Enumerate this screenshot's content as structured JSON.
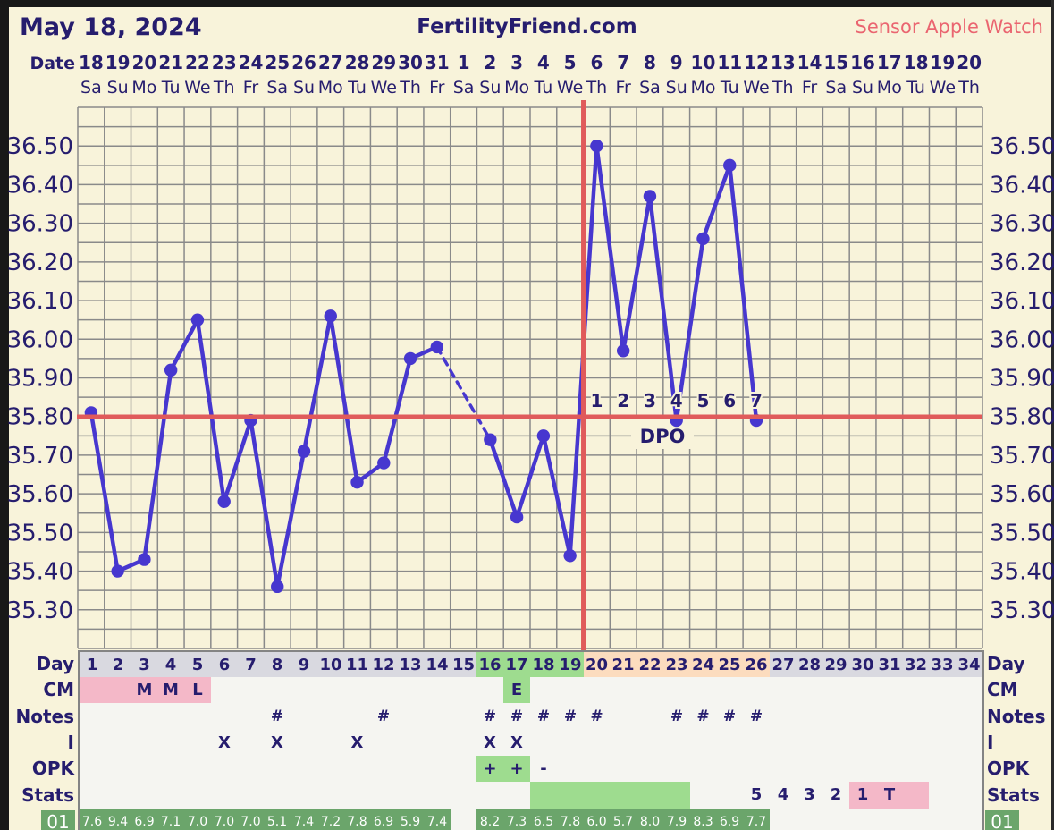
{
  "header": {
    "date_label": "May 18, 2024",
    "brand": "FertilityFriend.com",
    "sensor": "Sensor Apple Watch"
  },
  "axis": {
    "date_row_label": "Date",
    "dates": [
      "18",
      "19",
      "20",
      "21",
      "22",
      "23",
      "24",
      "25",
      "26",
      "27",
      "28",
      "29",
      "30",
      "31",
      "1",
      "2",
      "3",
      "4",
      "5",
      "6",
      "7",
      "8",
      "9",
      "10",
      "11",
      "12",
      "13",
      "14",
      "15",
      "16",
      "17",
      "18",
      "19",
      "20"
    ],
    "weekdays": [
      "Sa",
      "Su",
      "Mo",
      "Tu",
      "We",
      "Th",
      "Fr",
      "Sa",
      "Su",
      "Mo",
      "Tu",
      "We",
      "Th",
      "Fr",
      "Sa",
      "Su",
      "Mo",
      "Tu",
      "We",
      "Th",
      "Fr",
      "Sa",
      "Su",
      "Mo",
      "Tu",
      "We",
      "Th",
      "Fr",
      "Sa",
      "Su",
      "Mo",
      "Tu",
      "We",
      "Th"
    ],
    "y_labels": [
      "36.50",
      "36.40",
      "36.30",
      "36.20",
      "36.10",
      "36.00",
      "35.90",
      "35.80",
      "35.70",
      "35.60",
      "35.50",
      "35.40",
      "35.30"
    ]
  },
  "chart_data": {
    "type": "line",
    "title": "Basal body temperature cycle chart",
    "x_day_count": 34,
    "temps": [
      35.81,
      35.4,
      35.43,
      35.92,
      36.05,
      35.58,
      35.79,
      35.36,
      35.71,
      36.06,
      35.63,
      35.68,
      35.95,
      35.98,
      null,
      35.74,
      35.54,
      35.75,
      35.44,
      36.5,
      35.97,
      36.37,
      35.79,
      36.26,
      36.45,
      35.79,
      null,
      null,
      null,
      null,
      null,
      null,
      null,
      null
    ],
    "ylim": [
      35.2,
      36.6
    ],
    "y_minor_step": 0.05,
    "coverline": 35.8,
    "ovulation_after_day": 19,
    "dpo_start_day": 20,
    "dpo_labels": [
      "1",
      "2",
      "3",
      "4",
      "5",
      "6",
      "7"
    ],
    "dpo_caption": "DPO",
    "missing_day_gap": [
      14,
      16
    ],
    "grid": true
  },
  "table": {
    "left_labels": [
      "Day",
      "CM",
      "Notes",
      "I",
      "OPK",
      "Stats"
    ],
    "right_labels": [
      "Day",
      "CM",
      "Notes",
      "I",
      "OPK",
      "Stats"
    ],
    "sleep_row_label": "01",
    "rows": [
      {
        "name": "Day",
        "cells": [
          "1",
          "2",
          "3",
          "4",
          "5",
          "6",
          "7",
          "8",
          "9",
          "10",
          "11",
          "12",
          "13",
          "14",
          "15",
          "16",
          "17",
          "18",
          "19",
          "20",
          "21",
          "22",
          "23",
          "24",
          "25",
          "26",
          "27",
          "28",
          "29",
          "30",
          "31",
          "32",
          "33",
          "34"
        ],
        "bg": [
          "y",
          "y",
          "y",
          "y",
          "y",
          "y",
          "y",
          "y",
          "y",
          "y",
          "y",
          "y",
          "y",
          "y",
          "y",
          "g",
          "g",
          "g",
          "g",
          "p",
          "p",
          "p",
          "p",
          "p",
          "p",
          "p",
          "y",
          "y",
          "y",
          "y",
          "y",
          "y",
          "y",
          "y"
        ]
      },
      {
        "name": "CM",
        "cells": [
          "",
          "",
          "M",
          "M",
          "L",
          "",
          "",
          "",
          "",
          "",
          "",
          "",
          "",
          "",
          "",
          "",
          "E",
          "",
          "",
          "",
          "",
          "",
          "",
          "",
          "",
          "",
          "",
          "",
          "",
          "",
          "",
          "",
          "",
          ""
        ],
        "bg": [
          "k",
          "k",
          "k",
          "k",
          "k",
          "",
          "",
          "",
          "",
          "",
          "",
          "",
          "",
          "",
          "",
          "",
          "g",
          "",
          "",
          "",
          "",
          "",
          "",
          "",
          "",
          "",
          "",
          "",
          "",
          "",
          "",
          "",
          "",
          ""
        ]
      },
      {
        "name": "Notes",
        "cells": [
          "",
          "",
          "",
          "",
          "",
          "",
          "",
          "#",
          "",
          "",
          "",
          "#",
          "",
          "",
          "",
          "#",
          "#",
          "#",
          "#",
          "#",
          "",
          "",
          "#",
          "#",
          "#",
          "#",
          "",
          "",
          "",
          "",
          "",
          "",
          "",
          ""
        ],
        "bg": [
          "",
          "",
          "",
          "",
          "",
          "",
          "",
          "",
          "",
          "",
          "",
          "",
          "",
          "",
          "",
          "",
          "",
          "",
          "",
          "",
          "",
          "",
          "",
          "",
          "",
          "",
          "",
          "",
          "",
          "",
          "",
          "",
          "",
          ""
        ]
      },
      {
        "name": "I",
        "cells": [
          "",
          "",
          "",
          "",
          "",
          "X",
          "",
          "X",
          "",
          "",
          "X",
          "",
          "",
          "",
          "",
          "X",
          "X",
          "",
          "",
          "",
          "",
          "",
          "",
          "",
          "",
          "",
          "",
          "",
          "",
          "",
          "",
          "",
          "",
          ""
        ],
        "bg": [
          "",
          "",
          "",
          "",
          "",
          "",
          "",
          "",
          "",
          "",
          "",
          "",
          "",
          "",
          "",
          "",
          "",
          "",
          "",
          "",
          "",
          "",
          "",
          "",
          "",
          "",
          "",
          "",
          "",
          "",
          "",
          "",
          "",
          ""
        ]
      },
      {
        "name": "OPK",
        "cells": [
          "",
          "",
          "",
          "",
          "",
          "",
          "",
          "",
          "",
          "",
          "",
          "",
          "",
          "",
          "",
          "+",
          "+",
          "-",
          "",
          "",
          "",
          "",
          "",
          "",
          "",
          "",
          "",
          "",
          "",
          "",
          "",
          "",
          "",
          ""
        ],
        "bg": [
          "",
          "",
          "",
          "",
          "",
          "",
          "",
          "",
          "",
          "",
          "",
          "",
          "",
          "",
          "",
          "g",
          "g",
          "",
          "",
          "",
          "",
          "",
          "",
          "",
          "",
          "",
          "",
          "",
          "",
          "",
          "",
          "",
          "",
          ""
        ]
      },
      {
        "name": "Stats",
        "cells": [
          "",
          "",
          "",
          "",
          "",
          "",
          "",
          "",
          "",
          "",
          "",
          "",
          "",
          "",
          "",
          "",
          "",
          "",
          "",
          "",
          "",
          "",
          "",
          "",
          "",
          "5",
          "4",
          "3",
          "2",
          "1",
          "T",
          "",
          "",
          ""
        ],
        "bg": [
          "",
          "",
          "",
          "",
          "",
          "",
          "",
          "",
          "",
          "",
          "",
          "",
          "",
          "",
          "",
          "",
          "",
          "g",
          "g",
          "g",
          "g",
          "g",
          "g",
          "",
          "",
          "",
          "",
          "",
          "",
          "k",
          "k",
          "k",
          "",
          ""
        ]
      },
      {
        "name": "01",
        "cells": [
          "7.6",
          "9.4",
          "6.9",
          "7.1",
          "7.0",
          "7.0",
          "7.0",
          "5.1",
          "7.4",
          "7.2",
          "7.8",
          "6.9",
          "5.9",
          "7.4",
          "",
          "8.2",
          "7.3",
          "6.5",
          "7.8",
          "6.0",
          "5.7",
          "8.0",
          "7.9",
          "8.3",
          "6.9",
          "7.7",
          "",
          "",
          "",
          "",
          "",
          "",
          "",
          ""
        ],
        "bg": [
          "d",
          "d",
          "d",
          "d",
          "d",
          "d",
          "d",
          "d",
          "d",
          "d",
          "d",
          "d",
          "d",
          "d",
          "",
          "d",
          "d",
          "d",
          "d",
          "d",
          "d",
          "d",
          "d",
          "d",
          "d",
          "d",
          "",
          "",
          "",
          "",
          "",
          "",
          "",
          ""
        ]
      }
    ]
  },
  "colors": {
    "line": "#4737cf",
    "red": "#e05b5b",
    "grid": "#8a8a8a",
    "navy": "#261d6e",
    "salmon": "#ea6570",
    "cream": "#f8f3da",
    "cell_plain": "#f5f5f1",
    "cell_grey": "#d9d9e0",
    "cell_green": "#9edc8f",
    "cell_peach": "#fcdcbe",
    "cell_pink": "#f4b8c8",
    "cell_dkgreen": "#6ba56b",
    "border": "#848484"
  }
}
